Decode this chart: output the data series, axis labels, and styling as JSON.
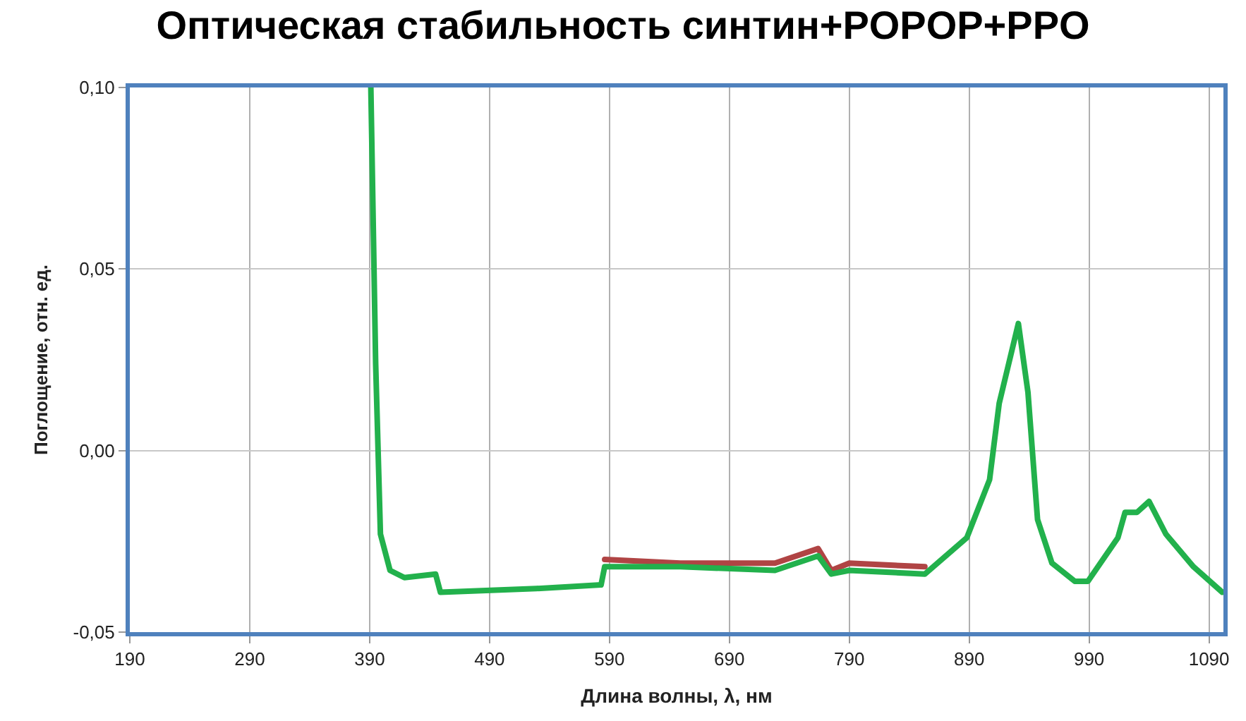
{
  "chart_data": {
    "type": "line",
    "title": "Оптическая стабильность синтин+POPOP+PPO",
    "xlabel": "Длина волны, λ, нм",
    "ylabel": "Поглощение, отн. ед.",
    "xlim": [
      190,
      1102
    ],
    "xticks": [
      190,
      290,
      390,
      490,
      590,
      690,
      790,
      890,
      990,
      1090
    ],
    "ylim": [
      -0.05,
      0.1
    ],
    "yticks": [
      {
        "value": -0.05,
        "label": "-0,05"
      },
      {
        "value": 0,
        "label": "0,00"
      },
      {
        "value": 0.05,
        "label": "0,05"
      },
      {
        "value": 0.1,
        "label": "0,10"
      }
    ],
    "grid": true,
    "legend": false,
    "marker": "none",
    "line_style": "solid",
    "series": [
      {
        "color": "#b04444",
        "x": [
          586,
          649,
          728,
          764,
          775,
          790,
          853
        ],
        "values": [
          -0.03,
          -0.031,
          -0.031,
          -0.027,
          -0.033,
          -0.031,
          -0.032
        ]
      },
      {
        "color": "#22b14c",
        "x": [
          391,
          395,
          399,
          407,
          419,
          445,
          449,
          529,
          583,
          586,
          649,
          728,
          764,
          775,
          790,
          853,
          888,
          907,
          915,
          923,
          931,
          939,
          947,
          959,
          978,
          989,
          1014,
          1020,
          1030,
          1040,
          1054,
          1077,
          1101
        ],
        "values": [
          0.1,
          0.024,
          -0.023,
          -0.033,
          -0.035,
          -0.034,
          -0.039,
          -0.038,
          -0.037,
          -0.032,
          -0.032,
          -0.033,
          -0.029,
          -0.034,
          -0.033,
          -0.034,
          -0.024,
          -0.008,
          0.013,
          0.024,
          0.035,
          0.016,
          -0.019,
          -0.031,
          -0.036,
          -0.036,
          -0.024,
          -0.017,
          -0.017,
          -0.014,
          -0.023,
          -0.032,
          -0.039
        ]
      }
    ]
  }
}
